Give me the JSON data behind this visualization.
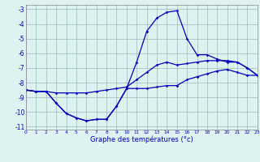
{
  "hours": [
    0,
    1,
    2,
    3,
    4,
    5,
    6,
    7,
    8,
    9,
    10,
    11,
    12,
    13,
    14,
    15,
    16,
    17,
    18,
    19,
    20,
    21,
    22,
    23
  ],
  "line_top": [
    -8.5,
    -8.6,
    -8.6,
    -8.7,
    -8.7,
    -8.7,
    -8.7,
    -8.6,
    -8.5,
    -8.4,
    -8.3,
    -7.8,
    -7.3,
    -6.8,
    -6.6,
    -6.8,
    -6.7,
    -6.6,
    -6.5,
    -6.5,
    -6.5,
    -6.6,
    -7.0,
    -7.5
  ],
  "line_peak": [
    -8.5,
    -8.6,
    -8.6,
    -9.4,
    -10.1,
    -10.4,
    -10.6,
    -10.5,
    -10.5,
    -9.6,
    -8.4,
    -6.6,
    -4.5,
    -3.6,
    -3.2,
    -3.1,
    -5.0,
    -6.1,
    -6.1,
    -6.4,
    -6.6,
    -6.6,
    -7.0,
    -7.5
  ],
  "line_bottom": [
    -8.5,
    -8.6,
    -8.6,
    -9.4,
    -10.1,
    -10.4,
    -10.6,
    -10.5,
    -10.5,
    -9.6,
    -8.4,
    -8.4,
    -8.4,
    -8.3,
    -8.2,
    -8.2,
    -7.8,
    -7.6,
    -7.4,
    -7.2,
    -7.1,
    -7.3,
    -7.5,
    -7.5
  ],
  "line_color": "#0000bb",
  "bg_color": "#dff2f2",
  "grid_color": "#99bbbb",
  "xlabel": "Graphe des températures (°c)",
  "xlim": [
    0,
    23
  ],
  "ylim": [
    -11.2,
    -2.7
  ],
  "yticks": [
    -11,
    -10,
    -9,
    -8,
    -7,
    -6,
    -5,
    -4,
    -3
  ],
  "xticks": [
    0,
    1,
    2,
    3,
    4,
    5,
    6,
    7,
    8,
    9,
    10,
    11,
    12,
    13,
    14,
    15,
    16,
    17,
    18,
    19,
    20,
    21,
    22,
    23
  ]
}
